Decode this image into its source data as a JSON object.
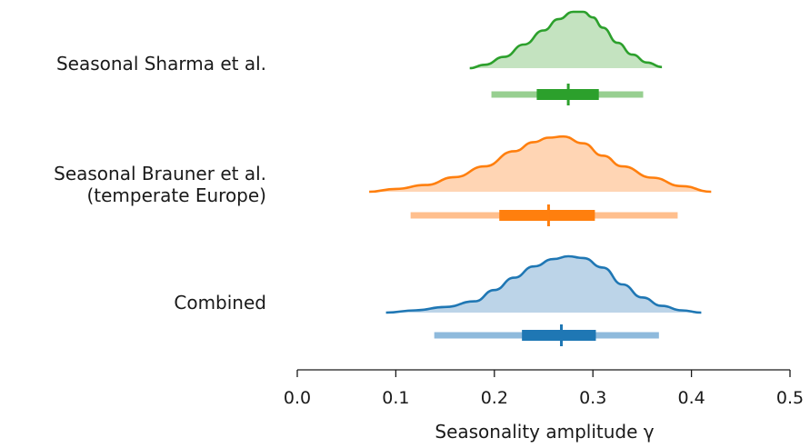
{
  "chart_data": {
    "type": "violin",
    "xlabel": "Seasonality amplitude γ",
    "xlim": [
      0.0,
      0.5
    ],
    "xticks": [
      "0.0",
      "0.1",
      "0.2",
      "0.3",
      "0.4",
      "0.5"
    ],
    "grid": false,
    "series": [
      {
        "name": "Seasonal Sharma et al.",
        "color": "#2ca02c",
        "fill": "#c4e3c0",
        "light": "#97cf90",
        "density": [
          [
            0.175,
            0.0
          ],
          [
            0.19,
            0.06
          ],
          [
            0.21,
            0.2
          ],
          [
            0.23,
            0.42
          ],
          [
            0.25,
            0.67
          ],
          [
            0.265,
            0.87
          ],
          [
            0.28,
            1.0
          ],
          [
            0.29,
            1.0
          ],
          [
            0.3,
            0.9
          ],
          [
            0.31,
            0.72
          ],
          [
            0.325,
            0.45
          ],
          [
            0.34,
            0.24
          ],
          [
            0.355,
            0.1
          ],
          [
            0.37,
            0.02
          ]
        ],
        "interval_95": [
          0.197,
          0.351
        ],
        "interval_50": [
          0.243,
          0.306
        ],
        "median": 0.275
      },
      {
        "name": "Seasonal Brauner et al.\n(temperate Europe)",
        "color": "#ff7f0e",
        "fill": "#ffd5b4",
        "light": "#ffbf8d",
        "density": [
          [
            0.073,
            0.0
          ],
          [
            0.1,
            0.05
          ],
          [
            0.13,
            0.12
          ],
          [
            0.16,
            0.26
          ],
          [
            0.19,
            0.45
          ],
          [
            0.22,
            0.72
          ],
          [
            0.24,
            0.88
          ],
          [
            0.255,
            0.96
          ],
          [
            0.27,
            0.98
          ],
          [
            0.29,
            0.86
          ],
          [
            0.31,
            0.64
          ],
          [
            0.33,
            0.45
          ],
          [
            0.36,
            0.25
          ],
          [
            0.39,
            0.1
          ],
          [
            0.42,
            0.0
          ]
        ],
        "interval_95": [
          0.115,
          0.386
        ],
        "interval_50": [
          0.205,
          0.302
        ],
        "median": 0.255
      },
      {
        "name": "Combined",
        "color": "#1f77b4",
        "fill": "#bcd4e8",
        "light": "#8fbadc",
        "density": [
          [
            0.09,
            0.0
          ],
          [
            0.12,
            0.04
          ],
          [
            0.15,
            0.1
          ],
          [
            0.18,
            0.2
          ],
          [
            0.2,
            0.4
          ],
          [
            0.22,
            0.62
          ],
          [
            0.24,
            0.82
          ],
          [
            0.26,
            0.95
          ],
          [
            0.275,
            1.0
          ],
          [
            0.29,
            0.97
          ],
          [
            0.31,
            0.8
          ],
          [
            0.33,
            0.5
          ],
          [
            0.35,
            0.27
          ],
          [
            0.37,
            0.12
          ],
          [
            0.39,
            0.04
          ],
          [
            0.41,
            0.0
          ]
        ],
        "interval_95": [
          0.139,
          0.367
        ],
        "interval_50": [
          0.228,
          0.303
        ],
        "median": 0.268
      }
    ]
  }
}
